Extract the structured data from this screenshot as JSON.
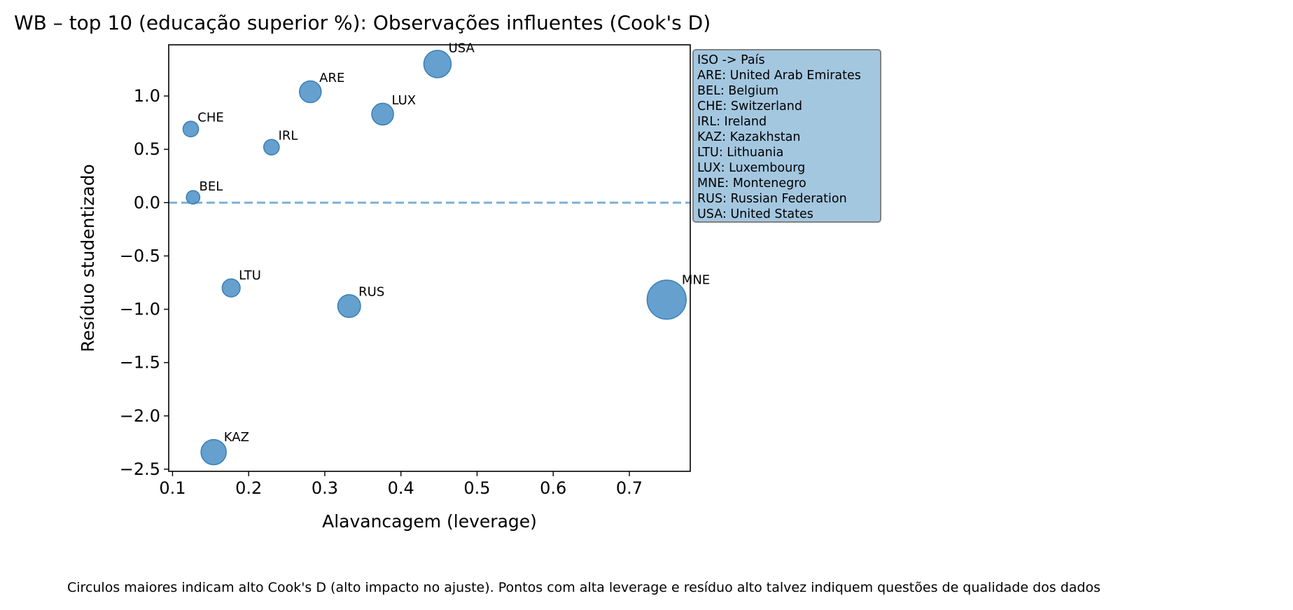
{
  "chart_data": {
    "type": "scatter",
    "title": "WB – top 10 (educação superior %): Observações influentes (Cook's D)",
    "xlabel": "Alavancagem (leverage)",
    "ylabel": "Resíduo studentizado",
    "xlim": [
      0.095,
      0.78
    ],
    "ylim": [
      -2.52,
      1.48
    ],
    "xticks": [
      0.1,
      0.2,
      0.3,
      0.4,
      0.5,
      0.6,
      0.7
    ],
    "xtick_labels": [
      "0.1",
      "0.2",
      "0.3",
      "0.4",
      "0.5",
      "0.6",
      "0.7"
    ],
    "yticks": [
      1.0,
      0.5,
      0.0,
      -0.5,
      -1.0,
      -1.5,
      -2.0,
      -2.5
    ],
    "ytick_labels": [
      "1.0",
      "0.5",
      "0.0",
      "−0.5",
      "−1.0",
      "−1.5",
      "−2.0",
      "−2.5"
    ],
    "reference_line": {
      "y": 0.0,
      "style": "dashed",
      "color": "#7fb2d9"
    },
    "point_color": "#4a8fc5",
    "grid": false,
    "points": [
      {
        "label": "USA",
        "x": 0.448,
        "y": 1.3,
        "cooks_d": 0.26
      },
      {
        "label": "ARE",
        "x": 0.281,
        "y": 1.04,
        "cooks_d": 0.14
      },
      {
        "label": "LUX",
        "x": 0.376,
        "y": 0.83,
        "cooks_d": 0.14
      },
      {
        "label": "CHE",
        "x": 0.124,
        "y": 0.69,
        "cooks_d": 0.05
      },
      {
        "label": "IRL",
        "x": 0.23,
        "y": 0.52,
        "cooks_d": 0.05
      },
      {
        "label": "BEL",
        "x": 0.127,
        "y": 0.05,
        "cooks_d": 0.03
      },
      {
        "label": "LTU",
        "x": 0.177,
        "y": -0.8,
        "cooks_d": 0.08
      },
      {
        "label": "RUS",
        "x": 0.332,
        "y": -0.97,
        "cooks_d": 0.16
      },
      {
        "label": "MNE",
        "x": 0.749,
        "y": -0.91,
        "cooks_d": 0.63
      },
      {
        "label": "KAZ",
        "x": 0.154,
        "y": -2.34,
        "cooks_d": 0.21
      }
    ]
  },
  "legend": {
    "title": "ISO -> País",
    "entries": [
      "ARE: United Arab Emirates",
      "BEL: Belgium",
      "CHE: Switzerland",
      "IRL: Ireland",
      "KAZ: Kazakhstan",
      "LTU: Lithuania",
      "LUX: Luxembourg",
      "MNE: Montenegro",
      "RUS: Russian Federation",
      "USA: United States"
    ]
  },
  "footnote": "Circulos maiores indicam alto Cook's D (alto impacto no ajuste). Pontos com alta leverage e resíduo alto talvez indiquem questões de qualidade dos dados"
}
